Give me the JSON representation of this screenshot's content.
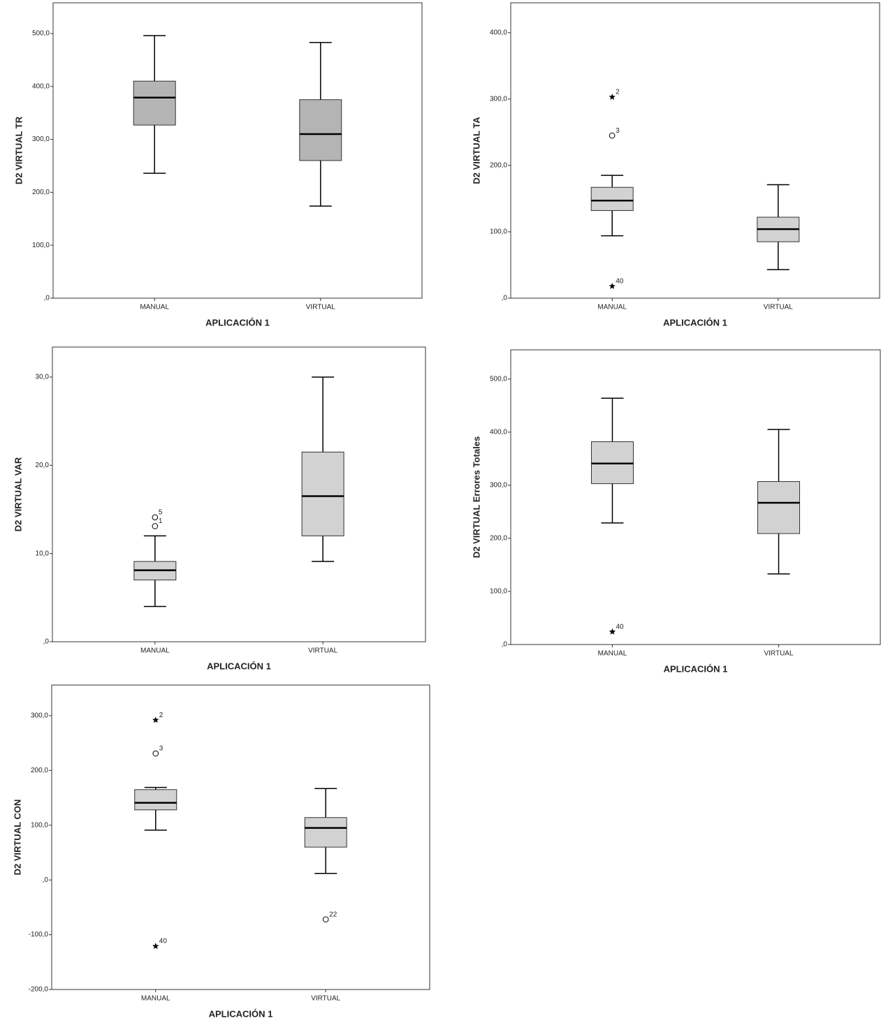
{
  "chart_data": [
    {
      "type": "box",
      "y_label": "D2 VIRTUAL TR",
      "x_label": "APLICACIÓN 1",
      "categories": [
        "MANUAL",
        "VIRTUAL"
      ],
      "color": "#b4b4b4",
      "ylim": [
        0,
        558
      ],
      "yticks": [
        {
          "value": 0,
          "label": ",0"
        },
        {
          "value": 100,
          "label": "100,0"
        },
        {
          "value": 200,
          "label": "200,0"
        },
        {
          "value": 300,
          "label": "300,0"
        },
        {
          "value": 400,
          "label": "400,0"
        },
        {
          "value": 500,
          "label": "500,0"
        }
      ],
      "boxes": [
        {
          "whisker_low": 236,
          "q1": 327,
          "median": 379,
          "q3": 410,
          "whisker_high": 496,
          "outliers": []
        },
        {
          "whisker_low": 174,
          "q1": 260,
          "median": 310,
          "q3": 375,
          "whisker_high": 483,
          "outliers": []
        }
      ]
    },
    {
      "type": "box",
      "y_label": "D2 VIRTUAL TA",
      "x_label": "APLICACIÓN 1",
      "categories": [
        "MANUAL",
        "VIRTUAL"
      ],
      "color": "#d2d2d2",
      "ylim": [
        0,
        445
      ],
      "yticks": [
        {
          "value": 0,
          "label": ",0"
        },
        {
          "value": 100,
          "label": "100,0"
        },
        {
          "value": 200,
          "label": "200,0"
        },
        {
          "value": 300,
          "label": "300,0"
        },
        {
          "value": 400,
          "label": "400,0"
        }
      ],
      "boxes": [
        {
          "whisker_low": 94,
          "q1": 132,
          "median": 147,
          "q3": 167,
          "whisker_high": 185,
          "outliers": [
            {
              "case": 2,
              "value": 303,
              "symbol": "star"
            },
            {
              "case": 3,
              "value": 245,
              "symbol": "circle"
            },
            {
              "case": 40,
              "value": 18,
              "symbol": "star"
            }
          ]
        },
        {
          "whisker_low": 43,
          "q1": 85,
          "median": 104,
          "q3": 122,
          "whisker_high": 171,
          "outliers": []
        }
      ]
    },
    {
      "type": "box",
      "y_label": "D2 VIRTUAL VAR",
      "x_label": "APLICACIÓN 1",
      "categories": [
        "MANUAL",
        "VIRTUAL"
      ],
      "color": "#d2d2d2",
      "ylim": [
        0,
        33.4
      ],
      "yticks": [
        {
          "value": 0,
          "label": ",0"
        },
        {
          "value": 10,
          "label": "10,0"
        },
        {
          "value": 20,
          "label": "20,0"
        },
        {
          "value": 30,
          "label": "30,0"
        }
      ],
      "boxes": [
        {
          "whisker_low": 4.0,
          "q1": 7.0,
          "median": 8.1,
          "q3": 9.1,
          "whisker_high": 12.0,
          "outliers": [
            {
              "case": 5,
              "value": 14.1,
              "symbol": "circle"
            },
            {
              "case": 1,
              "value": 13.1,
              "symbol": "circle"
            }
          ]
        },
        {
          "whisker_low": 9.1,
          "q1": 12.0,
          "median": 16.5,
          "q3": 21.5,
          "whisker_high": 30.0,
          "outliers": []
        }
      ]
    },
    {
      "type": "box",
      "y_label": "D2 VIRTUAL Errores Totales",
      "x_label": "APLICACIÓN 1",
      "categories": [
        "MANUAL",
        "VIRTUAL"
      ],
      "color": "#d2d2d2",
      "ylim": [
        0,
        555
      ],
      "yticks": [
        {
          "value": 0,
          "label": ",0"
        },
        {
          "value": 100,
          "label": "100,0"
        },
        {
          "value": 200,
          "label": "200,0"
        },
        {
          "value": 300,
          "label": "300,0"
        },
        {
          "value": 400,
          "label": "400,0"
        },
        {
          "value": 500,
          "label": "500,0"
        }
      ],
      "boxes": [
        {
          "whisker_low": 229,
          "q1": 303,
          "median": 341,
          "q3": 382,
          "whisker_high": 464,
          "outliers": [
            {
              "case": 40,
              "value": 24,
              "symbol": "star"
            }
          ]
        },
        {
          "whisker_low": 133,
          "q1": 209,
          "median": 267,
          "q3": 307,
          "whisker_high": 405,
          "outliers": []
        }
      ]
    },
    {
      "type": "box",
      "y_label": "D2 VIRTUAL CON",
      "x_label": "APLICACIÓN 1",
      "categories": [
        "MANUAL",
        "VIRTUAL"
      ],
      "color": "#d2d2d2",
      "ylim": [
        -200,
        356
      ],
      "yticks": [
        {
          "value": -200,
          "label": "-200,0"
        },
        {
          "value": -100,
          "label": "-100,0"
        },
        {
          "value": 0,
          "label": ",0"
        },
        {
          "value": 100,
          "label": "100,0"
        },
        {
          "value": 200,
          "label": "200,0"
        },
        {
          "value": 300,
          "label": "300,0"
        }
      ],
      "boxes": [
        {
          "whisker_low": 91,
          "q1": 128,
          "median": 141,
          "q3": 165,
          "whisker_high": 169,
          "outliers": [
            {
              "case": 2,
              "value": 292,
              "symbol": "star"
            },
            {
              "case": 3,
              "value": 231,
              "symbol": "circle"
            },
            {
              "case": 40,
              "value": -121,
              "symbol": "star"
            }
          ]
        },
        {
          "whisker_low": 12,
          "q1": 60,
          "median": 95,
          "q3": 114,
          "whisker_high": 167,
          "outliers": [
            {
              "case": 22,
              "value": -72,
              "symbol": "circle"
            }
          ]
        }
      ]
    }
  ]
}
